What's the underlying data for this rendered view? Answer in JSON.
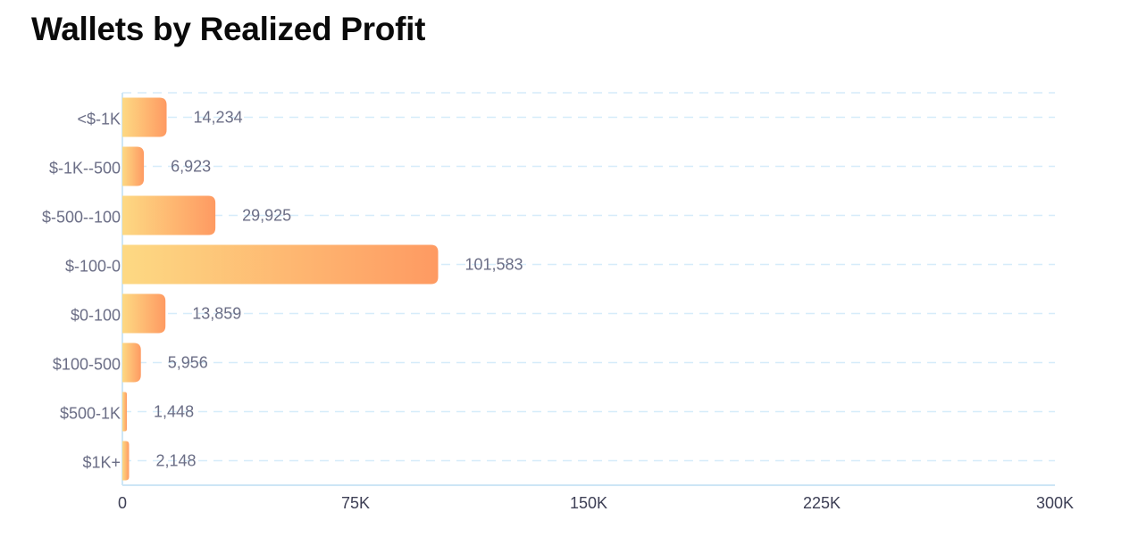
{
  "chart_data": {
    "type": "bar",
    "orientation": "horizontal",
    "title": "Wallets by Realized Profit",
    "categories": [
      "<$-1K",
      "$-1K--500",
      "$-500--100",
      "$-100-0",
      "$0-100",
      "$100-500",
      "$500-1K",
      "$1K+"
    ],
    "values": [
      14234,
      6923,
      29925,
      101583,
      13859,
      5956,
      1448,
      2148
    ],
    "value_labels": [
      "14,234",
      "6,923",
      "29,925",
      "101,583",
      "13,859",
      "5,956",
      "1,448",
      "2,148"
    ],
    "xlim": [
      0,
      300000
    ],
    "xticks": [
      0,
      75000,
      150000,
      225000,
      300000
    ],
    "xtick_labels": [
      "0",
      "75K",
      "150K",
      "225K",
      "300K"
    ],
    "xlabel": "",
    "ylabel": "",
    "grid": true,
    "colors": {
      "bar_start": "#fdd983",
      "bar_end": "#fe9a62",
      "grid": "#d6ecfa",
      "axis": "#cde6f6"
    }
  }
}
